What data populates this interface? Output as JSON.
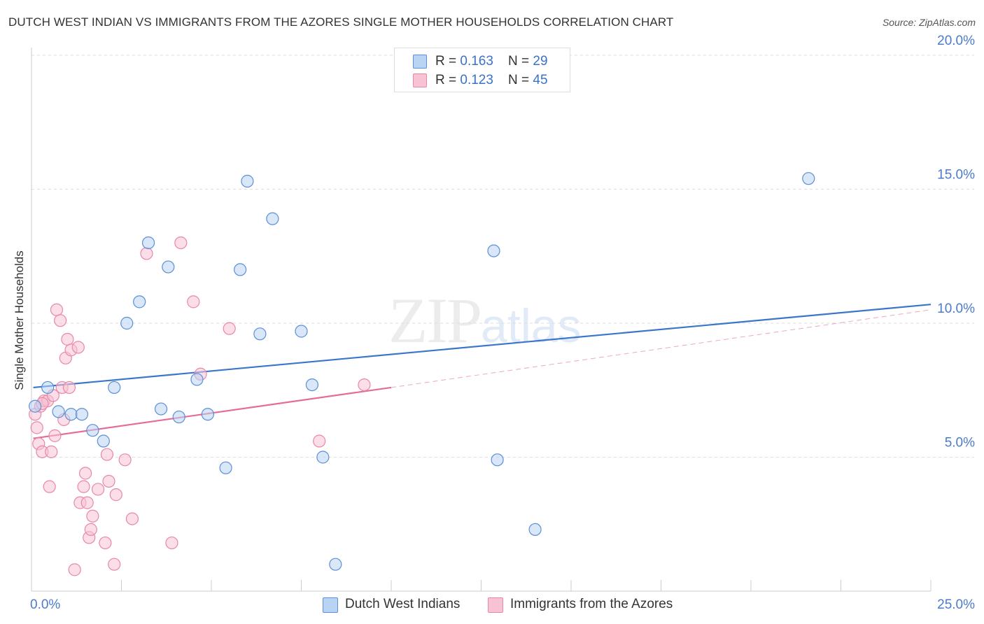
{
  "title": "DUTCH WEST INDIAN VS IMMIGRANTS FROM THE AZORES SINGLE MOTHER HOUSEHOLDS CORRELATION CHART",
  "source": "Source: ZipAtlas.com",
  "watermark": {
    "zip": "ZIP",
    "atlas": "atlas"
  },
  "colors": {
    "blue": "#3a76cc",
    "blue_fill": "#b9d3f2",
    "pink": "#e46d98",
    "pink_fill": "#f7c2d3",
    "tick_label": "#4a7bcc",
    "grid": "#dddddd"
  },
  "legend": {
    "rows": [
      {
        "r_label": "R = ",
        "r_value": "0.163",
        "n_label": "N = ",
        "n_value": "29"
      },
      {
        "r_label": "R = ",
        "r_value": "0.123",
        "n_label": "N = ",
        "n_value": "45"
      }
    ]
  },
  "chart_data": {
    "type": "scatter",
    "title": "DUTCH WEST INDIAN VS IMMIGRANTS FROM THE AZORES SINGLE MOTHER HOUSEHOLDS CORRELATION CHART",
    "xlabel": "",
    "ylabel": "Single Mother Households",
    "xlim": [
      0,
      25
    ],
    "ylim": [
      0,
      20
    ],
    "x_tick_labels": [
      "0.0%",
      "25.0%"
    ],
    "y_ticks": [
      5,
      10,
      15,
      20
    ],
    "y_tick_labels": [
      "5.0%",
      "10.0%",
      "15.0%",
      "20.0%"
    ],
    "legend_position": "top-center",
    "series": [
      {
        "name": "Dutch West Indians",
        "color": "blue",
        "r": 0.163,
        "n": 29,
        "trend": {
          "x0": 0.05,
          "y0": 7.6,
          "x1": 25.0,
          "y1": 10.7
        },
        "points": [
          [
            0.1,
            6.9
          ],
          [
            0.45,
            7.6
          ],
          [
            0.75,
            6.7
          ],
          [
            1.1,
            6.6
          ],
          [
            1.4,
            6.6
          ],
          [
            1.7,
            6.0
          ],
          [
            2.0,
            5.6
          ],
          [
            2.3,
            7.6
          ],
          [
            2.65,
            10.0
          ],
          [
            3.0,
            10.8
          ],
          [
            3.25,
            13.0
          ],
          [
            3.6,
            6.8
          ],
          [
            3.8,
            12.1
          ],
          [
            4.1,
            6.5
          ],
          [
            4.6,
            7.9
          ],
          [
            4.9,
            6.6
          ],
          [
            5.4,
            4.6
          ],
          [
            5.8,
            12.0
          ],
          [
            6.0,
            15.3
          ],
          [
            6.35,
            9.6
          ],
          [
            6.7,
            13.9
          ],
          [
            7.5,
            9.7
          ],
          [
            7.8,
            7.7
          ],
          [
            8.1,
            5.0
          ],
          [
            8.45,
            1.0
          ],
          [
            12.85,
            12.7
          ],
          [
            12.95,
            4.9
          ],
          [
            14.0,
            2.3
          ],
          [
            21.6,
            15.4
          ]
        ]
      },
      {
        "name": "Immigrants from the Azores",
        "color": "pink",
        "r": 0.123,
        "n": 45,
        "trend": {
          "x0": 0.05,
          "y0": 5.7,
          "x1": 10.0,
          "y1": 7.6
        },
        "trend_extension": {
          "x0": 10.0,
          "y0": 7.6,
          "x1": 25.0,
          "y1": 10.5
        },
        "points": [
          [
            0.1,
            6.6
          ],
          [
            0.15,
            6.1
          ],
          [
            0.2,
            5.5
          ],
          [
            0.25,
            6.9
          ],
          [
            0.3,
            5.2
          ],
          [
            0.35,
            7.1
          ],
          [
            0.45,
            7.1
          ],
          [
            0.5,
            3.9
          ],
          [
            0.55,
            5.2
          ],
          [
            0.6,
            7.3
          ],
          [
            0.65,
            5.8
          ],
          [
            0.7,
            10.5
          ],
          [
            0.8,
            10.1
          ],
          [
            0.85,
            7.6
          ],
          [
            0.9,
            6.4
          ],
          [
            0.95,
            8.7
          ],
          [
            1.0,
            9.4
          ],
          [
            1.05,
            7.6
          ],
          [
            1.1,
            9.0
          ],
          [
            1.2,
            0.8
          ],
          [
            1.3,
            9.1
          ],
          [
            1.35,
            3.3
          ],
          [
            1.45,
            3.9
          ],
          [
            1.5,
            4.4
          ],
          [
            1.55,
            3.3
          ],
          [
            1.6,
            2.0
          ],
          [
            1.65,
            2.3
          ],
          [
            1.7,
            2.8
          ],
          [
            1.85,
            3.8
          ],
          [
            2.05,
            1.8
          ],
          [
            2.1,
            5.1
          ],
          [
            2.15,
            4.1
          ],
          [
            2.3,
            1.0
          ],
          [
            2.35,
            3.6
          ],
          [
            2.6,
            4.9
          ],
          [
            2.8,
            2.7
          ],
          [
            3.2,
            12.6
          ],
          [
            3.9,
            1.8
          ],
          [
            4.15,
            13.0
          ],
          [
            4.5,
            10.8
          ],
          [
            4.7,
            8.1
          ],
          [
            5.5,
            9.8
          ],
          [
            8.0,
            5.6
          ],
          [
            9.25,
            7.7
          ],
          [
            0.3,
            7.0
          ]
        ]
      }
    ]
  },
  "bottom_legend": {
    "items": [
      "Dutch West Indians",
      "Immigrants from the Azores"
    ]
  }
}
